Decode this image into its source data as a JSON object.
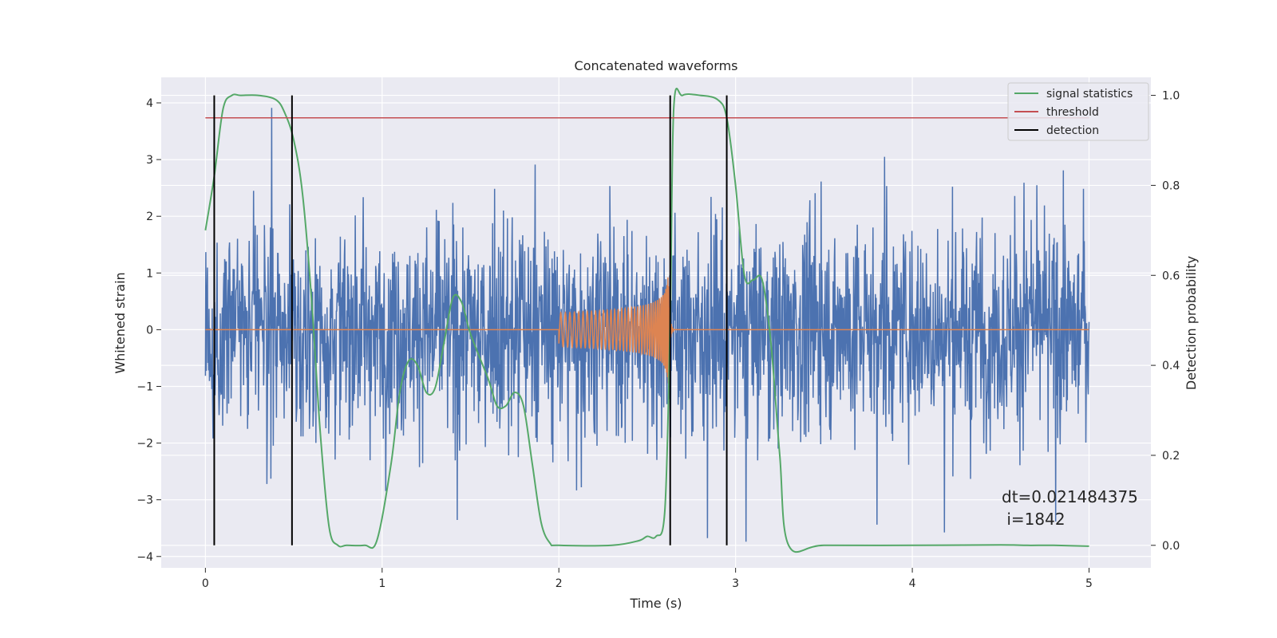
{
  "chart_data": {
    "type": "line",
    "title": "Concatenated waveforms",
    "xlabel": "Time (s)",
    "ylabel": "Whitened strain",
    "ylabel_right": "Detection probability",
    "xlim": [
      -0.25,
      5.35
    ],
    "ylim": [
      -4.2,
      4.45
    ],
    "ylim_right": [
      -0.05,
      1.04
    ],
    "x_ticks": [
      0,
      1,
      2,
      3,
      4,
      5
    ],
    "y_ticks": [
      -4,
      -3,
      -2,
      -1,
      0,
      1,
      2,
      3,
      4
    ],
    "y_ticks_right": [
      0.0,
      0.2,
      0.4,
      0.6,
      0.8,
      1.0
    ],
    "x_tick_labels": [
      "0",
      "1",
      "2",
      "3",
      "4",
      "5"
    ],
    "y_tick_labels": [
      "−4",
      "−3",
      "−2",
      "−1",
      "0",
      "1",
      "2",
      "3",
      "4"
    ],
    "y_tick_labels_right": [
      "0.0",
      "0.2",
      "0.4",
      "0.6",
      "0.8",
      "1.0"
    ],
    "grid": true,
    "legend_position": "top-right",
    "colors": {
      "background": "#eaeaf2",
      "noise": "#4c72b0",
      "injection": "#dd8452",
      "statistics": "#55a868",
      "threshold": "#c44e52",
      "detection": "#000000"
    },
    "series": [
      {
        "name": "signal statistics",
        "axis": "right",
        "x": [
          0.0,
          0.05,
          0.1,
          0.15,
          0.2,
          0.3,
          0.4,
          0.45,
          0.5,
          0.55,
          0.6,
          0.65,
          0.7,
          0.75,
          0.8,
          0.9,
          0.97,
          1.05,
          1.1,
          1.15,
          1.2,
          1.25,
          1.3,
          1.35,
          1.4,
          1.45,
          1.5,
          1.6,
          1.65,
          1.7,
          1.75,
          1.8,
          1.85,
          1.9,
          1.95,
          2.0,
          2.3,
          2.45,
          2.5,
          2.55,
          2.6,
          2.63,
          2.65,
          2.7,
          2.8,
          2.9,
          2.95,
          3.0,
          3.05,
          3.1,
          3.15,
          3.2,
          3.25,
          3.3,
          3.5,
          4.0,
          4.5,
          4.65,
          4.8,
          5.0
        ],
        "values": [
          0.7,
          0.82,
          0.97,
          1.0,
          1.0,
          1.0,
          0.99,
          0.96,
          0.9,
          0.78,
          0.55,
          0.25,
          0.04,
          0.0,
          0.0,
          0.0,
          0.01,
          0.18,
          0.34,
          0.41,
          0.4,
          0.34,
          0.35,
          0.45,
          0.55,
          0.54,
          0.47,
          0.37,
          0.31,
          0.31,
          0.34,
          0.31,
          0.18,
          0.05,
          0.005,
          0.0,
          0.0,
          0.01,
          0.02,
          0.02,
          0.08,
          0.5,
          0.97,
          1.0,
          1.0,
          0.99,
          0.95,
          0.8,
          0.6,
          0.59,
          0.59,
          0.45,
          0.2,
          0.0,
          0.0,
          0.0,
          0.001,
          0.0,
          0.0,
          -0.002
        ]
      },
      {
        "name": "threshold",
        "axis": "right",
        "x": [
          0.0,
          5.0
        ],
        "values": [
          0.95,
          0.95
        ]
      }
    ],
    "detections": [
      0.05,
      0.49,
      2.63,
      2.95
    ],
    "injection": {
      "start": 2.0,
      "merger": 2.62,
      "end": 2.65
    },
    "noise_range": [
      0.0,
      5.0
    ],
    "annotation": {
      "line1": "dt=0.021484375",
      "line2": " i=1842"
    }
  },
  "legend": [
    {
      "label": "signal statistics",
      "color": "#55a868"
    },
    {
      "label": "threshold",
      "color": "#c44e52"
    },
    {
      "label": "detection",
      "color": "#000000"
    }
  ]
}
